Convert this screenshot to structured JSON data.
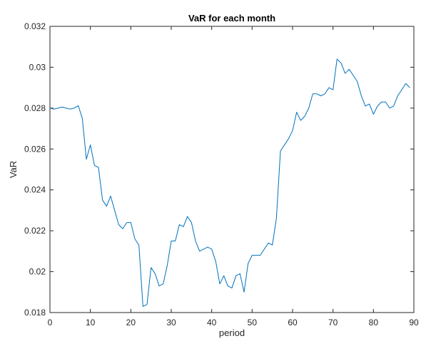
{
  "chart_data": {
    "type": "line",
    "title": "VaR for each month",
    "xlabel": "period",
    "ylabel": "VaR",
    "xlim": [
      0,
      90
    ],
    "ylim": [
      0.018,
      0.032
    ],
    "grid": false,
    "legend": "none",
    "xticks": [
      0,
      10,
      20,
      30,
      40,
      50,
      60,
      70,
      80,
      90
    ],
    "xtick_labels": [
      "0",
      "10",
      "20",
      "30",
      "40",
      "50",
      "60",
      "70",
      "80",
      "90"
    ],
    "yticks": [
      0.018,
      0.02,
      0.022,
      0.024,
      0.026,
      0.028,
      0.03,
      0.032
    ],
    "ytick_labels": [
      "0.018",
      "0.02",
      "0.022",
      "0.024",
      "0.026",
      "0.028",
      "0.03",
      "0.032"
    ],
    "series": [
      {
        "color": "#0072BD",
        "x": [
          0,
          1,
          2,
          3,
          4,
          5,
          6,
          7,
          8,
          9,
          10,
          11,
          12,
          13,
          14,
          15,
          16,
          17,
          18,
          19,
          20,
          21,
          22,
          23,
          24,
          25,
          26,
          27,
          28,
          29,
          30,
          31,
          32,
          33,
          34,
          35,
          36,
          37,
          38,
          39,
          40,
          41,
          42,
          43,
          44,
          45,
          46,
          47,
          48,
          49,
          50,
          51,
          52,
          53,
          54,
          55,
          56,
          57,
          58,
          59,
          60,
          61,
          62,
          63,
          64,
          65,
          66,
          67,
          68,
          69,
          70,
          71,
          72,
          73,
          74,
          75,
          76,
          77,
          78,
          79,
          80,
          81,
          82,
          83,
          84,
          85,
          86,
          87,
          88,
          89
        ],
        "y": [
          0.028,
          0.02795,
          0.028,
          0.02805,
          0.028,
          0.02795,
          0.028,
          0.02812,
          0.0275,
          0.0255,
          0.0262,
          0.0252,
          0.0251,
          0.0235,
          0.0232,
          0.0237,
          0.023,
          0.0223,
          0.0221,
          0.0224,
          0.0224,
          0.0216,
          0.0213,
          0.0183,
          0.0184,
          0.0202,
          0.0199,
          0.0193,
          0.0194,
          0.0203,
          0.0215,
          0.0215,
          0.0223,
          0.0222,
          0.0227,
          0.0224,
          0.0215,
          0.021,
          0.0211,
          0.0212,
          0.0211,
          0.0205,
          0.0194,
          0.0198,
          0.0193,
          0.0192,
          0.0198,
          0.0199,
          0.019,
          0.0204,
          0.0208,
          0.0208,
          0.0208,
          0.0211,
          0.0214,
          0.0213,
          0.0226,
          0.0259,
          0.0262,
          0.0265,
          0.0269,
          0.0278,
          0.0274,
          0.0276,
          0.028,
          0.0287,
          0.0287,
          0.0286,
          0.0287,
          0.029,
          0.0289,
          0.0304,
          0.0302,
          0.0297,
          0.0299,
          0.0296,
          0.0293,
          0.0286,
          0.0281,
          0.0282,
          0.0277,
          0.0281,
          0.0283,
          0.0283,
          0.028,
          0.0281,
          0.0286,
          0.0289,
          0.0292,
          0.029
        ]
      }
    ]
  }
}
